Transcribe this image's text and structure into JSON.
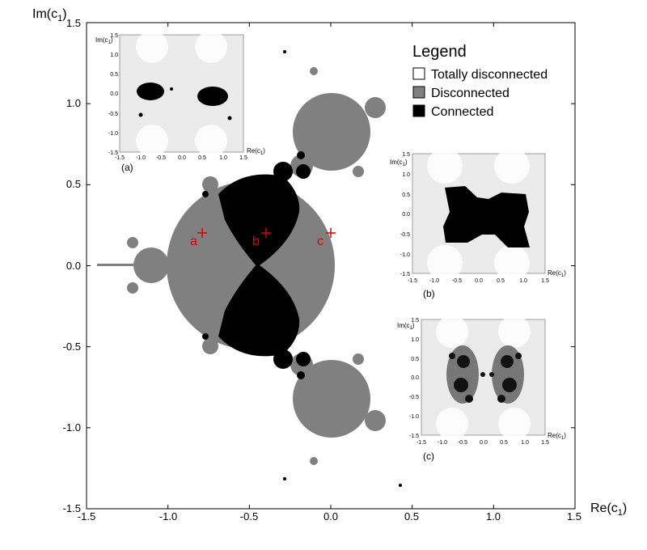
{
  "chart_data": {
    "type": "region-map",
    "xlabel": "Re(c",
    "xlabel_sub": "1",
    "ylabel": "Im(c",
    "ylabel_sub": "1",
    "xlim": [
      -1.5,
      1.5
    ],
    "ylim": [
      -1.5,
      1.5
    ],
    "xticks": [
      "-1.5",
      "-1.0",
      "-0.5",
      "0.0",
      "0.5",
      "1.0",
      "1.5"
    ],
    "yticks": [
      "1.5",
      "1.0",
      "0.5",
      "0.0",
      "-0.5",
      "-1.0",
      "-1.5"
    ],
    "legend": {
      "title": "Legend",
      "position": "top-right",
      "entries": [
        {
          "label": "Totally disconnected",
          "color": "#ffffff"
        },
        {
          "label": "Disconnected",
          "color": "#808080"
        },
        {
          "label": "Connected",
          "color": "#000000"
        }
      ]
    },
    "points": [
      {
        "label": "a",
        "x": -0.78,
        "y": 0.2
      },
      {
        "label": "b",
        "x": -0.38,
        "y": 0.2
      },
      {
        "label": "c",
        "x": 0.02,
        "y": 0.2
      }
    ],
    "insets": [
      {
        "label": "(a)",
        "xlabel": "Re(c",
        "xlabel_sub": "1",
        "ylabel": "Im(c",
        "ylabel_sub": "1",
        "xticks": [
          "-1.5",
          "-1.0",
          "-0.5",
          "0.0",
          "0.5",
          "1.0",
          "1.5"
        ],
        "yticks": [
          "1.5",
          "1.0",
          "0.5",
          "0.0",
          "-0.5",
          "-1.0",
          "-1.5"
        ]
      },
      {
        "label": "(b)",
        "xlabel": "Re(c",
        "xlabel_sub": "1",
        "ylabel": "Im(c",
        "ylabel_sub": "1",
        "xticks": [
          "-1.5",
          "-1.0",
          "-0.5",
          "0.0",
          "0.5",
          "1.0",
          "1.5"
        ],
        "yticks": [
          "1.5",
          "1.0",
          "0.5",
          "0.0",
          "-0.5",
          "-1.0",
          "-1.5"
        ]
      },
      {
        "label": "(c)",
        "xlabel": "Re(c",
        "xlabel_sub": "1",
        "ylabel": "Im(c",
        "ylabel_sub": "1",
        "xticks": [
          "-1.5",
          "-1.0",
          "-0.5",
          "0.0",
          "0.5",
          "1.0",
          "1.5"
        ],
        "yticks": [
          "1.5",
          "1.0",
          "0.5",
          "0.0",
          "-0.5",
          "-1.0",
          "-1.5"
        ]
      }
    ],
    "colors": {
      "connected": "#000000",
      "disconnected": "#808080",
      "totally_disconnected": "#ffffff",
      "marker": "#e00000",
      "inset_background": "#ebebeb"
    }
  }
}
